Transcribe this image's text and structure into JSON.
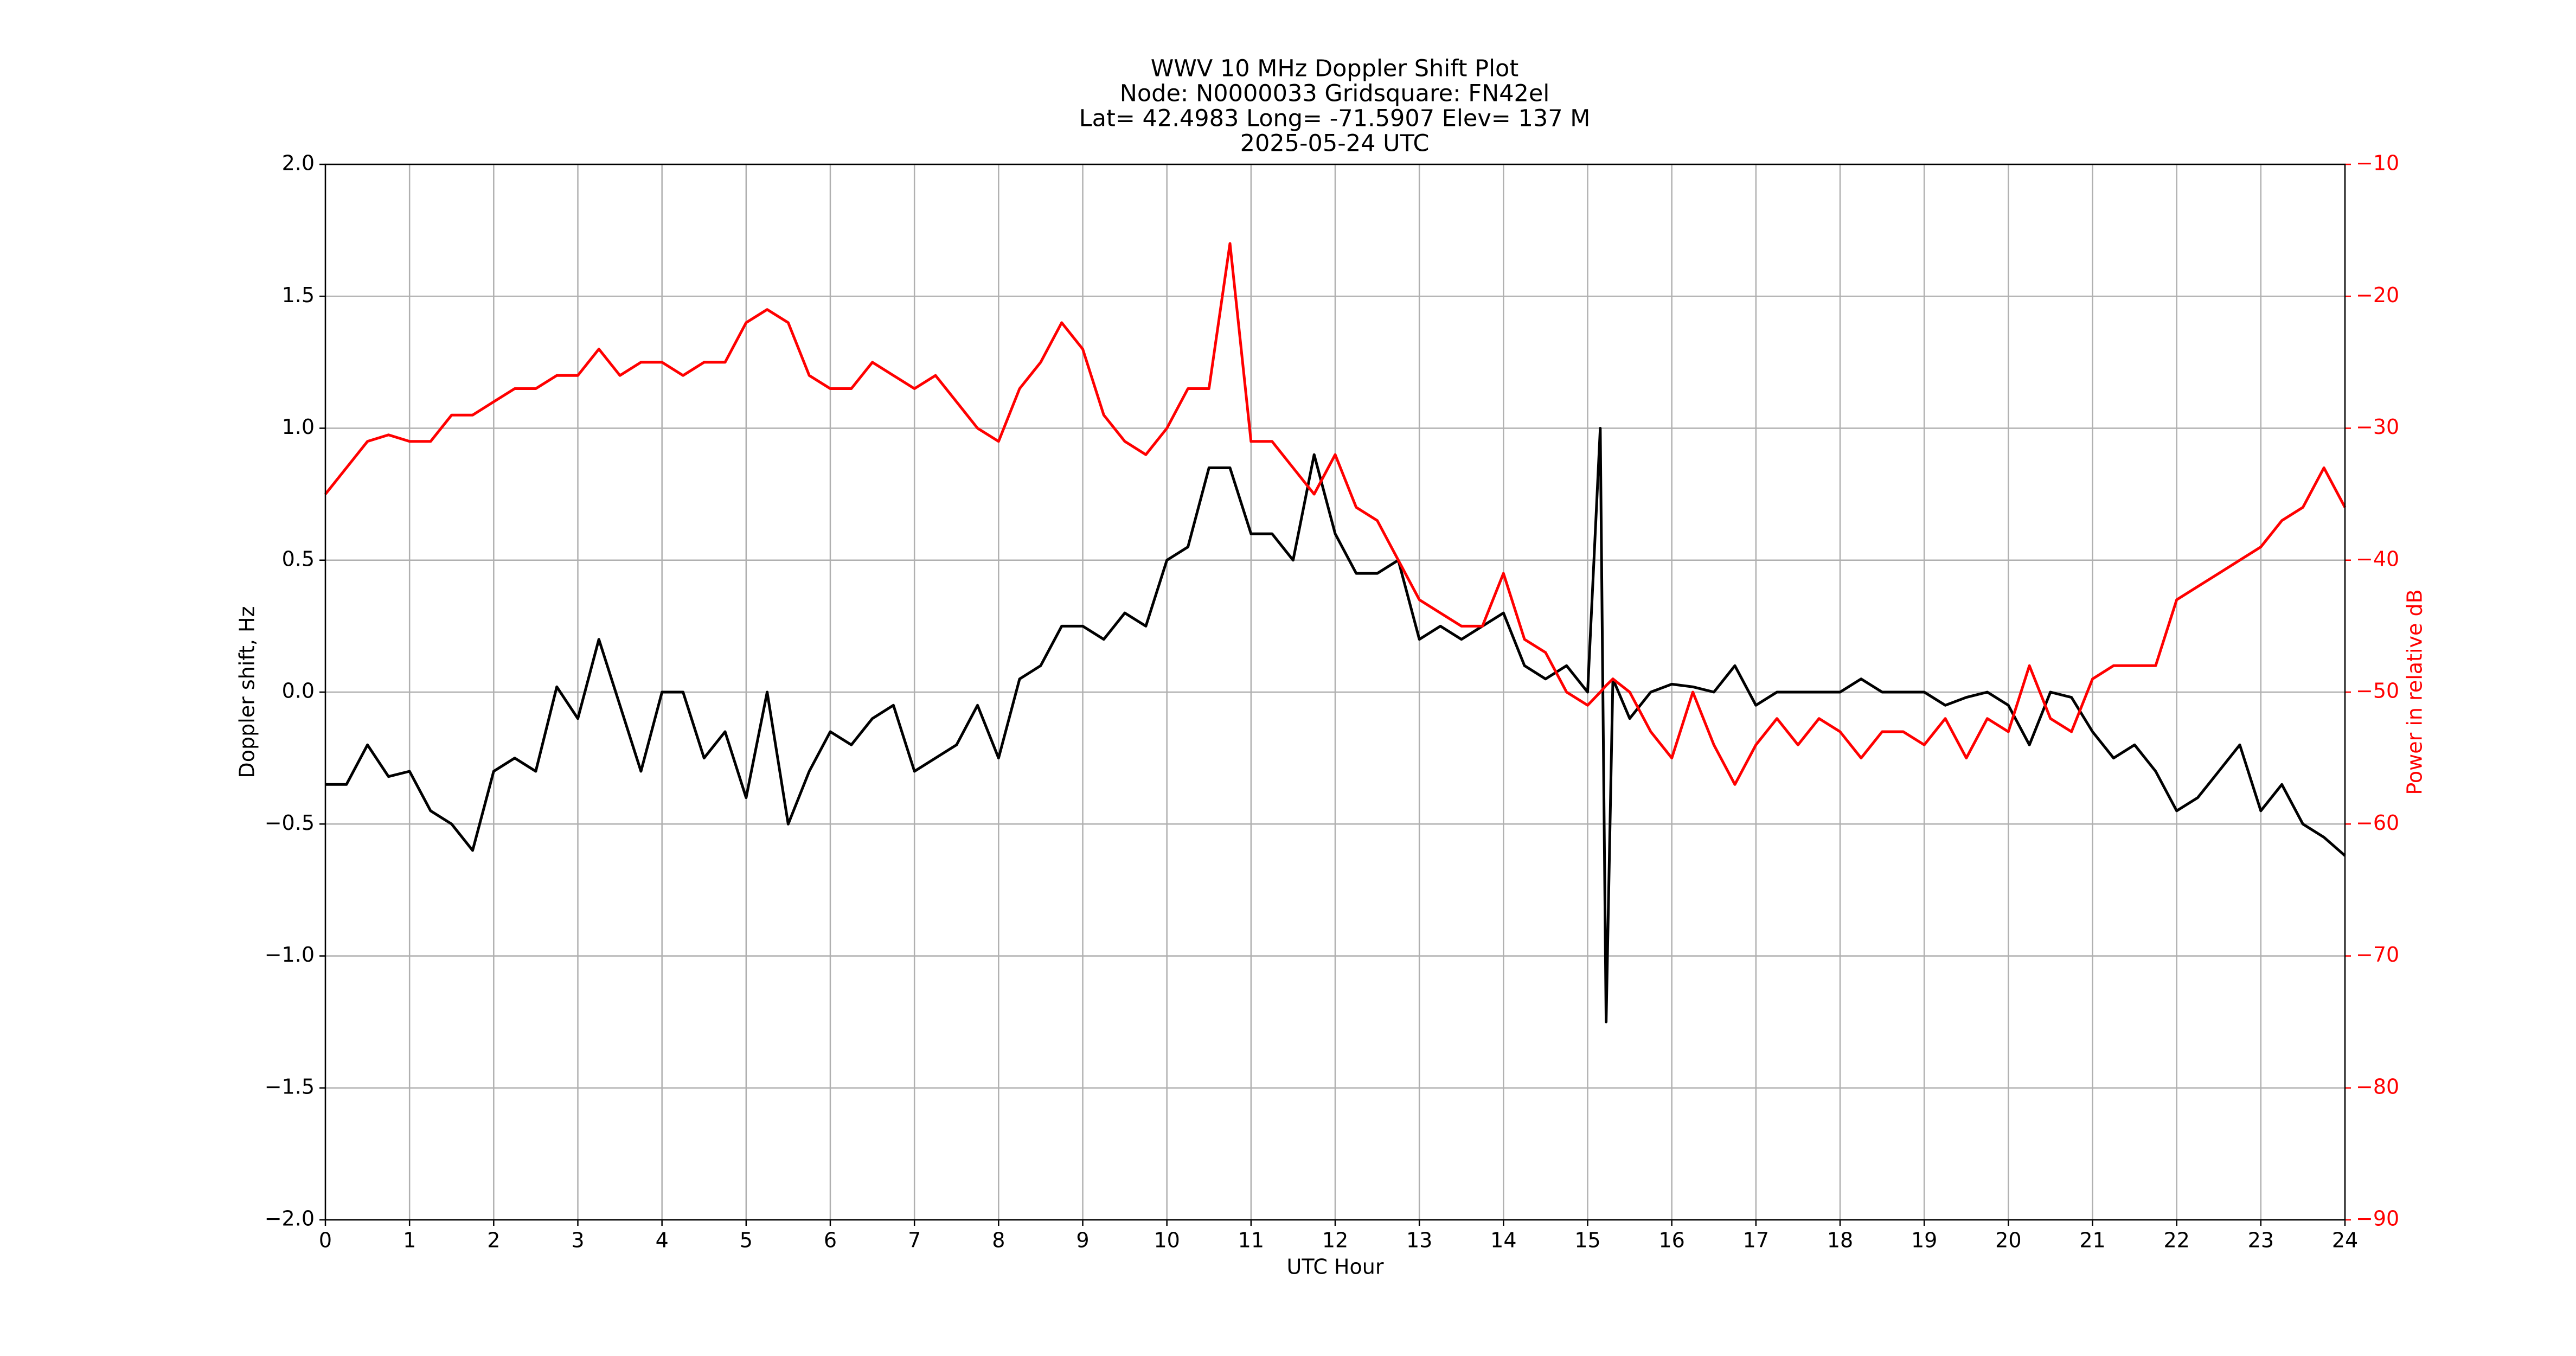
{
  "chart_data": {
    "type": "line",
    "title": [
      "WWV 10 MHz Doppler Shift Plot",
      "Node:  N0000033     Gridsquare:  FN42el",
      "Lat= 42.4983    Long= -71.5907    Elev= 137 M",
      "2025-05-24  UTC"
    ],
    "xlabel": "UTC Hour",
    "ylabel": "Doppler shift, Hz",
    "y2label": "Power in relative dB",
    "grid": true,
    "xlim": [
      0,
      24
    ],
    "xticks": [
      0,
      1,
      2,
      3,
      4,
      5,
      6,
      7,
      8,
      9,
      10,
      11,
      12,
      13,
      14,
      15,
      16,
      17,
      18,
      19,
      20,
      21,
      22,
      23,
      24
    ],
    "ylim": [
      -2,
      2
    ],
    "yticks": [
      {
        "value": -2,
        "label": "−2.0"
      },
      {
        "value": -1.5,
        "label": "−1.5"
      },
      {
        "value": -1,
        "label": "−1.0"
      },
      {
        "value": -0.5,
        "label": "−0.5"
      },
      {
        "value": 0,
        "label": "0.0"
      },
      {
        "value": 0.5,
        "label": "0.5"
      },
      {
        "value": 1,
        "label": "1.0"
      },
      {
        "value": 1.5,
        "label": "1.5"
      },
      {
        "value": 2,
        "label": "2.0"
      }
    ],
    "y2lim": [
      -90,
      -10
    ],
    "y2ticks": [
      {
        "value": -90,
        "label": "−90"
      },
      {
        "value": -80,
        "label": "−80"
      },
      {
        "value": -70,
        "label": "−70"
      },
      {
        "value": -60,
        "label": "−60"
      },
      {
        "value": -50,
        "label": "−50"
      },
      {
        "value": -40,
        "label": "−40"
      },
      {
        "value": -30,
        "label": "−30"
      },
      {
        "value": -20,
        "label": "−20"
      },
      {
        "value": -10,
        "label": "−10"
      }
    ],
    "y2color": "#ff0000",
    "x": [
      0,
      0.25,
      0.5,
      0.75,
      1,
      1.25,
      1.5,
      1.75,
      2,
      2.25,
      2.5,
      2.75,
      3,
      3.25,
      3.5,
      3.75,
      4,
      4.25,
      4.5,
      4.75,
      5,
      5.25,
      5.5,
      5.75,
      6,
      6.25,
      6.5,
      6.75,
      7,
      7.25,
      7.5,
      7.75,
      8,
      8.25,
      8.5,
      8.75,
      9,
      9.25,
      9.5,
      9.75,
      10,
      10.25,
      10.5,
      10.75,
      11,
      11.25,
      11.5,
      11.75,
      12,
      12.25,
      12.5,
      12.75,
      13,
      13.25,
      13.5,
      13.75,
      14,
      14.25,
      14.5,
      14.75,
      15,
      15.15,
      15.22,
      15.3,
      15.5,
      15.75,
      16,
      16.25,
      16.5,
      16.75,
      17,
      17.25,
      17.5,
      17.75,
      18,
      18.25,
      18.5,
      18.75,
      19,
      19.25,
      19.5,
      19.75,
      20,
      20.25,
      20.5,
      20.75,
      21,
      21.25,
      21.5,
      21.75,
      22,
      22.25,
      22.5,
      22.75,
      23,
      23.25,
      23.5,
      23.75,
      24
    ],
    "series": [
      {
        "color": "#000000",
        "values": [
          -0.35,
          -0.35,
          -0.2,
          -0.32,
          -0.3,
          -0.45,
          -0.5,
          -0.6,
          -0.3,
          -0.25,
          -0.3,
          0.02,
          -0.1,
          0.2,
          -0.05,
          -0.3,
          0.0,
          0.0,
          -0.25,
          -0.15,
          -0.4,
          0.0,
          -0.5,
          -0.3,
          -0.15,
          -0.2,
          -0.1,
          -0.05,
          -0.3,
          -0.25,
          -0.2,
          -0.05,
          -0.25,
          0.05,
          0.1,
          0.25,
          0.25,
          0.2,
          0.3,
          0.25,
          0.5,
          0.55,
          0.85,
          0.85,
          0.6,
          0.6,
          0.5,
          0.9,
          0.6,
          0.45,
          0.45,
          0.5,
          0.2,
          0.25,
          0.2,
          0.25,
          0.3,
          0.1,
          0.05,
          0.1,
          0.0,
          1.0,
          -1.25,
          0.05,
          -0.1,
          0.0,
          0.03,
          0.02,
          0.0,
          0.1,
          -0.05,
          0.0,
          0.0,
          0.0,
          0.0,
          0.05,
          0.0,
          0.0,
          0.0,
          -0.05,
          -0.02,
          0.0,
          -0.05,
          -0.2,
          0.0,
          -0.02,
          -0.15,
          -0.25,
          -0.2,
          -0.3,
          -0.45,
          -0.4,
          -0.3,
          -0.2,
          -0.45,
          -0.35,
          -0.5,
          -0.55,
          -0.62
        ]
      },
      {
        "color": "#ff0000",
        "axis": "y2",
        "values": [
          -35,
          -33,
          -31,
          -30.5,
          -31,
          -31,
          -29,
          -29,
          -28,
          -27,
          -27,
          -26,
          -26,
          -24,
          -26,
          -25,
          -25,
          -26,
          -25,
          -25,
          -22,
          -21,
          -22,
          -26,
          -27,
          -27,
          -25,
          -26,
          -27,
          -26,
          -28,
          -30,
          -31,
          -27,
          -25,
          -22,
          -24,
          -29,
          -31,
          -32,
          -30,
          -27,
          -27,
          -16,
          -31,
          -31,
          -33,
          -35,
          -32,
          -36,
          -37,
          -40,
          -43,
          -44,
          -45,
          -45,
          -41,
          -46,
          -47,
          -50,
          -51,
          -50,
          -49.5,
          -49,
          -50,
          -53,
          -55,
          -50,
          -54,
          -57,
          -54,
          -52,
          -54,
          -52,
          -53,
          -55,
          -53,
          -53,
          -54,
          -52,
          -55,
          -52,
          -53,
          -48,
          -52,
          -53,
          -49,
          -48,
          -48,
          -48,
          -43,
          -42,
          -41,
          -40,
          -39,
          -37,
          -36,
          -33,
          -36
        ]
      }
    ]
  }
}
